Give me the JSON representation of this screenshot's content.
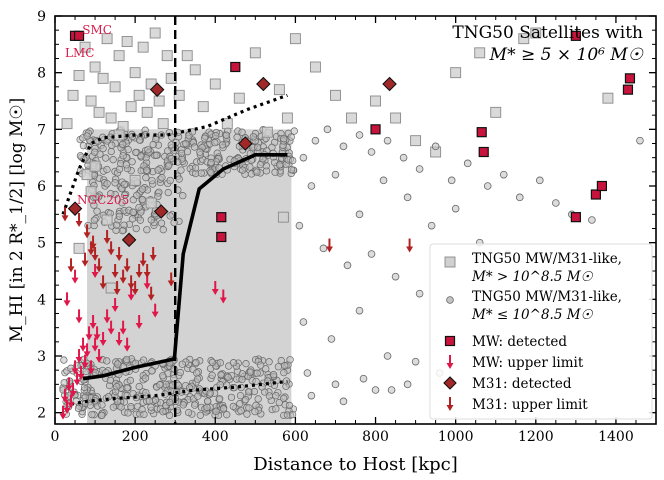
{
  "chart_data": {
    "type": "scatter",
    "title": "",
    "annotation_title": [
      "TNG50 Satellites with",
      "M* ≥ 5 × 10⁶ M☉"
    ],
    "xlabel": "Distance to Host [kpc]",
    "ylabel": "M_HI [in 2 R*_1/2] [log M☉]",
    "xlim": [
      0,
      1500
    ],
    "ylim": [
      1.8,
      9
    ],
    "xticks": [
      0,
      200,
      400,
      600,
      800,
      1000,
      1200,
      1400
    ],
    "yticks": [
      2,
      3,
      4,
      5,
      6,
      7,
      8,
      9
    ],
    "vline_x": 300,
    "band": {
      "x": [
        80,
        590
      ],
      "y": [
        1.8,
        7.0
      ]
    },
    "median_line": {
      "x": [
        70,
        120,
        200,
        280,
        298,
        320,
        360,
        420,
        500,
        580
      ],
      "y": [
        2.6,
        2.65,
        2.8,
        2.92,
        2.95,
        4.8,
        5.95,
        6.3,
        6.55,
        6.55
      ]
    },
    "upper_percentile": {
      "x": [
        20,
        60,
        90,
        120,
        200,
        280,
        380,
        480,
        580
      ],
      "y": [
        5.5,
        6.3,
        6.75,
        6.85,
        6.9,
        6.9,
        7.05,
        7.35,
        7.6
      ]
    },
    "lower_percentile": {
      "x": [
        40,
        80,
        150,
        250,
        350,
        450,
        580
      ],
      "y": [
        2.15,
        2.2,
        2.25,
        2.3,
        2.4,
        2.45,
        2.55
      ]
    },
    "series": [
      {
        "name": "TNG50 MW/M31-like, M* > 10^8.5 M☉",
        "marker": "square-open-gray",
        "x": [
          30,
          45,
          60,
          75,
          90,
          100,
          110,
          120,
          130,
          140,
          150,
          160,
          170,
          180,
          190,
          200,
          210,
          220,
          230,
          240,
          250,
          260,
          270,
          280,
          290,
          310,
          330,
          350,
          370,
          400,
          430,
          460,
          500,
          530,
          560,
          580,
          600,
          650,
          700,
          740,
          800,
          850,
          900,
          950,
          1000,
          1060,
          1100,
          1170,
          1200,
          1380,
          80,
          100,
          130,
          160,
          200,
          240,
          60,
          90,
          140,
          570
        ],
        "y": [
          7.1,
          7.6,
          7.95,
          8.45,
          7.5,
          8.1,
          7.3,
          7.9,
          8.6,
          7.2,
          7.75,
          8.3,
          7.05,
          8.55,
          7.4,
          8.0,
          7.6,
          8.45,
          7.3,
          7.8,
          8.7,
          7.5,
          7.1,
          8.3,
          7.9,
          7.6,
          8.3,
          8.05,
          7.4,
          7.8,
          7.1,
          7.55,
          8.35,
          6.95,
          7.7,
          7.2,
          8.6,
          8.1,
          7.6,
          7.2,
          7.5,
          7.2,
          6.8,
          6.6,
          8.0,
          8.35,
          7.3,
          8.6,
          8.7,
          7.55,
          6.2,
          6.35,
          5.4,
          6.9,
          6.1,
          5.7,
          4.9,
          5.9,
          4.2,
          5.45
        ]
      },
      {
        "name": "TNG50 MW/M31-like, M* ≤ 10^8.5 M☉",
        "marker": "circle-open-gray",
        "x": [
          620,
          650,
          680,
          720,
          760,
          790,
          830,
          870,
          910,
          950,
          990,
          1030,
          1080,
          1120,
          1160,
          1210,
          1250,
          1290,
          1340,
          1460,
          640,
          700,
          760,
          820,
          880,
          940,
          1000,
          1060,
          1130,
          610,
          670,
          730,
          790,
          850,
          910,
          620,
          690,
          760,
          830,
          900,
          960,
          630,
          700,
          770,
          840,
          640,
          720,
          800,
          880
        ],
        "y": [
          6.5,
          6.8,
          7.0,
          6.7,
          6.9,
          6.6,
          6.8,
          6.5,
          6.3,
          6.7,
          6.1,
          6.4,
          6.0,
          6.2,
          5.8,
          6.1,
          5.7,
          5.5,
          5.4,
          6.8,
          6.0,
          6.2,
          5.5,
          6.1,
          5.8,
          5.3,
          5.6,
          5.0,
          4.8,
          5.3,
          4.9,
          4.6,
          4.8,
          4.4,
          4.1,
          3.6,
          3.3,
          3.8,
          3.0,
          2.9,
          2.7,
          2.7,
          2.5,
          2.6,
          2.4,
          2.3,
          2.2,
          2.4,
          2.5
        ]
      },
      {
        "name": "MW: detected",
        "marker": "square-red",
        "x": [
          50,
          60,
          450,
          800,
          1065,
          1070,
          1300,
          1300,
          1350,
          1365,
          1430,
          1435,
          415,
          415
        ],
        "y": [
          8.65,
          8.65,
          8.1,
          7.0,
          6.95,
          6.6,
          8.65,
          5.45,
          5.85,
          6.0,
          7.7,
          7.9,
          5.45,
          5.1
        ]
      },
      {
        "name": "MW: upper limit",
        "marker": "arrow-crimson",
        "x": [
          20,
          25,
          30,
          35,
          40,
          45,
          50,
          55,
          60,
          65,
          70,
          75,
          80,
          85,
          90,
          95,
          100,
          105,
          110,
          120,
          130,
          140,
          150,
          160,
          170,
          180,
          190,
          210,
          230,
          250,
          100,
          50,
          30,
          60,
          400,
          420
        ],
        "y": [
          2.0,
          2.3,
          2.1,
          2.5,
          2.2,
          2.4,
          2.8,
          2.6,
          3.0,
          2.7,
          3.2,
          2.9,
          3.1,
          3.4,
          2.8,
          3.6,
          3.2,
          3.4,
          3.0,
          3.3,
          3.7,
          3.5,
          3.9,
          3.3,
          3.5,
          3.2,
          4.1,
          3.6,
          4.3,
          3.8,
          4.5,
          4.4,
          4.0,
          3.7,
          4.2,
          4.05
        ]
      },
      {
        "name": "M31: detected",
        "marker": "diamond-darkred",
        "x": [
          50,
          255,
          265,
          185,
          475,
          520,
          835
        ],
        "y": [
          5.6,
          7.7,
          5.55,
          5.05,
          6.75,
          7.8,
          7.8
        ]
      },
      {
        "name": "M31: upper limit",
        "marker": "arrow-darkred",
        "x": [
          25,
          40,
          60,
          75,
          80,
          90,
          95,
          100,
          110,
          120,
          130,
          140,
          150,
          155,
          160,
          170,
          180,
          190,
          200,
          210,
          220,
          230,
          240,
          245,
          290,
          685,
          885
        ],
        "y": [
          5.5,
          4.6,
          5.4,
          4.7,
          5.2,
          4.9,
          5.0,
          4.8,
          4.6,
          4.3,
          5.1,
          4.9,
          4.5,
          4.2,
          4.8,
          4.4,
          4.6,
          4.3,
          4.2,
          4.5,
          4.7,
          4.5,
          4.1,
          4.8,
          4.35,
          4.95,
          4.95
        ]
      }
    ],
    "annotations": [
      {
        "text": "SMC",
        "x": 68,
        "y": 8.75,
        "color": "#d81b4a"
      },
      {
        "text": "LMC",
        "x": 25,
        "y": 8.35,
        "color": "#d81b4a"
      },
      {
        "text": "NGC205",
        "x": 55,
        "y": 5.75,
        "color": "#d81b4a"
      }
    ],
    "legend": {
      "placement": "lower-right",
      "entries": [
        [
          "TNG50 MW/M31-like,",
          "M* > 10^8.5 M☉"
        ],
        [
          "TNG50 MW/M31-like,",
          "M* ≤ 10^8.5 M☉"
        ],
        [
          "MW: detected"
        ],
        [
          "MW: upper limit"
        ],
        [
          "M31: detected"
        ],
        [
          "M31: upper limit"
        ]
      ]
    }
  }
}
